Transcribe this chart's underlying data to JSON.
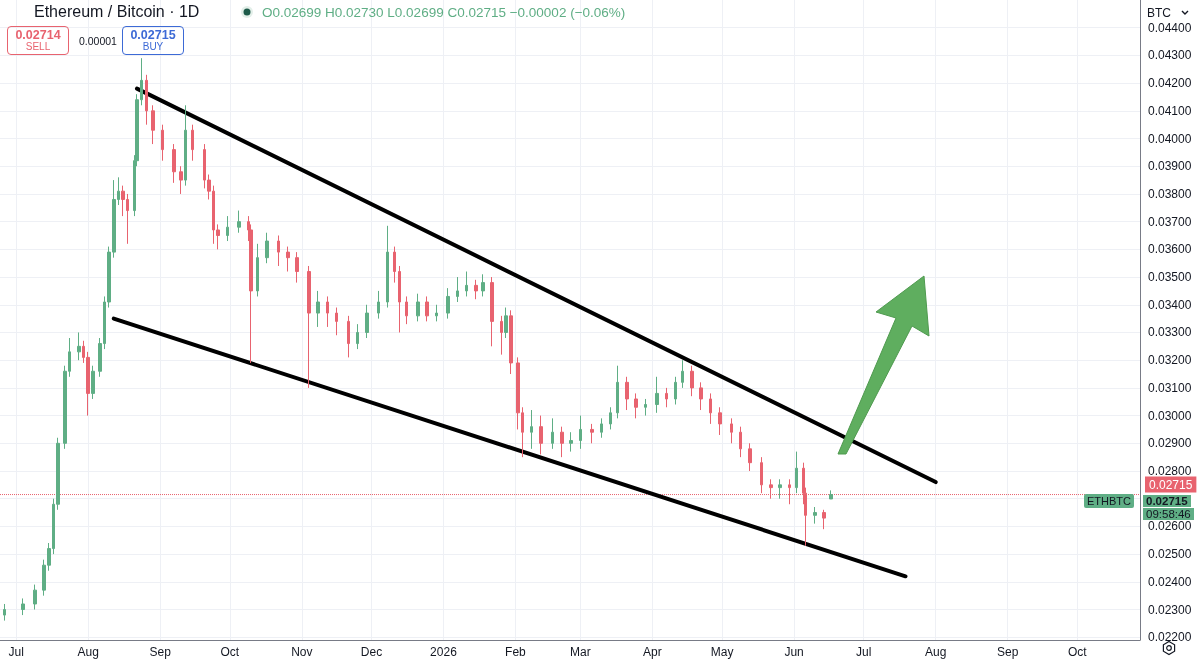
{
  "chart_data": {
    "type": "candlestick",
    "title": "Ethereum / Bitcoin · 1D",
    "annotations": [
      "O0.02699 H0.02730 L0.02699 C0.02715 −0.00002 (−0.06%)",
      "0.02714",
      "SELL",
      "0.00001",
      "0.02715",
      "BUY",
      "BTC",
      "ETHBTC",
      "0.02715",
      "09:58:46"
    ],
    "x": [
      "2025-06-26",
      "2025-07-04",
      "2025-07-09",
      "2025-07-13",
      "2025-07-15",
      "2025-07-17",
      "2025-07-19",
      "2025-07-22",
      "2025-07-24",
      "2025-07-28",
      "2025-07-30",
      "2025-08-01",
      "2025-08-03",
      "2025-08-06",
      "2025-08-08",
      "2025-08-10",
      "2025-08-12",
      "2025-08-14",
      "2025-08-16",
      "2025-08-18",
      "2025-08-21",
      "2025-08-22",
      "2025-08-24",
      "2025-08-26",
      "2025-08-29",
      "2025-09-02",
      "2025-09-07",
      "2025-09-10",
      "2025-09-12",
      "2025-09-15",
      "2025-09-20",
      "2025-09-22",
      "2025-09-24",
      "2025-09-26",
      "2025-09-30",
      "2025-10-05",
      "2025-10-09",
      "2025-10-10",
      "2025-10-13",
      "2025-10-17",
      "2025-10-22",
      "2025-10-26",
      "2025-10-30",
      "2025-11-04",
      "2025-11-08",
      "2025-11-12",
      "2025-11-16",
      "2025-11-21",
      "2025-11-25",
      "2025-11-29",
      "2025-12-04",
      "2025-12-08",
      "2025-12-11",
      "2025-12-13",
      "2025-12-16",
      "2025-12-21",
      "2025-12-25",
      "2025-12-29",
      "2026-01-03",
      "2026-01-07",
      "2026-01-11",
      "2026-01-15",
      "2026-01-18",
      "2026-01-22",
      "2026-01-26",
      "2026-01-28",
      "2026-01-30",
      "2026-02-02",
      "2026-02-04",
      "2026-02-08",
      "2026-02-12",
      "2026-02-17",
      "2026-02-21",
      "2026-02-25",
      "2026-03-01",
      "2026-03-06",
      "2026-03-10",
      "2026-03-14",
      "2026-03-17",
      "2026-03-21",
      "2026-03-25",
      "2026-03-29",
      "2026-04-03",
      "2026-04-07",
      "2026-04-11",
      "2026-04-14",
      "2026-04-18",
      "2026-04-22",
      "2026-04-26",
      "2026-04-30",
      "2026-05-05",
      "2026-05-09",
      "2026-05-13",
      "2026-05-18",
      "2026-05-22",
      "2026-05-26",
      "2026-05-30",
      "2026-06-02",
      "2026-06-05",
      "2026-06-06",
      "2026-06-10",
      "2026-06-14",
      "2026-06-17"
    ],
    "ohlc": [
      [
        0.0228,
        0.0232,
        0.0226,
        0.023
      ],
      [
        0.023,
        0.0234,
        0.0228,
        0.0232
      ],
      [
        0.0232,
        0.0239,
        0.023,
        0.0237
      ],
      [
        0.0237,
        0.0248,
        0.0235,
        0.0246
      ],
      [
        0.0246,
        0.0254,
        0.0244,
        0.0252
      ],
      [
        0.0252,
        0.027,
        0.025,
        0.0268
      ],
      [
        0.0268,
        0.0292,
        0.0266,
        0.029
      ],
      [
        0.029,
        0.0318,
        0.0288,
        0.0316
      ],
      [
        0.0316,
        0.0328,
        0.0314,
        0.0323
      ],
      [
        0.0323,
        0.033,
        0.032,
        0.0325
      ],
      [
        0.0325,
        0.0327,
        0.0319,
        0.0321
      ],
      [
        0.0321,
        0.0323,
        0.03,
        0.0308
      ],
      [
        0.0308,
        0.0318,
        0.0306,
        0.0316
      ],
      [
        0.0316,
        0.0328,
        0.0314,
        0.0326
      ],
      [
        0.0326,
        0.0343,
        0.0324,
        0.0341
      ],
      [
        0.0341,
        0.0361,
        0.0339,
        0.0359
      ],
      [
        0.0359,
        0.0385,
        0.0357,
        0.0378
      ],
      [
        0.0378,
        0.0386,
        0.0376,
        0.0381
      ],
      [
        0.0381,
        0.0383,
        0.0372,
        0.0378
      ],
      [
        0.0378,
        0.038,
        0.0362,
        0.0374
      ],
      [
        0.0374,
        0.0394,
        0.0372,
        0.0392
      ],
      [
        0.0392,
        0.0416,
        0.039,
        0.0414
      ],
      [
        0.0414,
        0.0429,
        0.0412,
        0.0421
      ],
      [
        0.0421,
        0.0423,
        0.0405,
        0.041
      ],
      [
        0.041,
        0.0412,
        0.0398,
        0.0403
      ],
      [
        0.0403,
        0.0405,
        0.0392,
        0.0396
      ],
      [
        0.0396,
        0.0398,
        0.0384,
        0.0388
      ],
      [
        0.0388,
        0.039,
        0.038,
        0.0385
      ],
      [
        0.0385,
        0.0412,
        0.0383,
        0.0403
      ],
      [
        0.0403,
        0.0405,
        0.0392,
        0.0396
      ],
      [
        0.0396,
        0.0398,
        0.0382,
        0.0385
      ],
      [
        0.0385,
        0.0387,
        0.0378,
        0.0381
      ],
      [
        0.0381,
        0.0383,
        0.0362,
        0.0367
      ],
      [
        0.0367,
        0.0369,
        0.036,
        0.0365
      ],
      [
        0.0365,
        0.0372,
        0.0363,
        0.0368
      ],
      [
        0.0368,
        0.0374,
        0.0366,
        0.037
      ],
      [
        0.037,
        0.0372,
        0.0363,
        0.0367
      ],
      [
        0.0367,
        0.0369,
        0.0319,
        0.0345
      ],
      [
        0.0345,
        0.0362,
        0.0343,
        0.0357
      ],
      [
        0.0357,
        0.0366,
        0.0355,
        0.0363
      ],
      [
        0.0363,
        0.0365,
        0.0354,
        0.0359
      ],
      [
        0.0359,
        0.0361,
        0.0352,
        0.0357
      ],
      [
        0.0357,
        0.0359,
        0.0348,
        0.0352
      ],
      [
        0.0352,
        0.0354,
        0.031,
        0.0337
      ],
      [
        0.0337,
        0.0345,
        0.0332,
        0.0341
      ],
      [
        0.0341,
        0.0343,
        0.0332,
        0.0337
      ],
      [
        0.0337,
        0.0339,
        0.0329,
        0.0334
      ],
      [
        0.0334,
        0.0336,
        0.0321,
        0.0326
      ],
      [
        0.0326,
        0.0333,
        0.0324,
        0.033
      ],
      [
        0.033,
        0.034,
        0.0328,
        0.0337
      ],
      [
        0.0337,
        0.0345,
        0.0335,
        0.0341
      ],
      [
        0.0341,
        0.03685,
        0.0339,
        0.0359
      ],
      [
        0.0359,
        0.0361,
        0.0348,
        0.0352
      ],
      [
        0.0352,
        0.0354,
        0.033,
        0.0341
      ],
      [
        0.0341,
        0.0343,
        0.0333,
        0.0336
      ],
      [
        0.0336,
        0.0344,
        0.0334,
        0.0341
      ],
      [
        0.0341,
        0.0343,
        0.0334,
        0.0336
      ],
      [
        0.0336,
        0.034,
        0.0334,
        0.0337
      ],
      [
        0.0337,
        0.0346,
        0.0335,
        0.0343
      ],
      [
        0.0343,
        0.035,
        0.0341,
        0.0345
      ],
      [
        0.0345,
        0.0352,
        0.0343,
        0.0347
      ],
      [
        0.0347,
        0.0349,
        0.0342,
        0.0345
      ],
      [
        0.0345,
        0.0351,
        0.0343,
        0.0348
      ],
      [
        0.0348,
        0.035,
        0.0325,
        0.0334
      ],
      [
        0.0334,
        0.0336,
        0.0322,
        0.033
      ],
      [
        0.033,
        0.0339,
        0.0328,
        0.0336
      ],
      [
        0.0336,
        0.0338,
        0.0315,
        0.0319
      ],
      [
        0.0319,
        0.0321,
        0.0295,
        0.0301
      ],
      [
        0.0301,
        0.0303,
        0.0285,
        0.0294
      ],
      [
        0.0294,
        0.0302,
        0.0288,
        0.0296
      ],
      [
        0.0296,
        0.03,
        0.0286,
        0.029
      ],
      [
        0.029,
        0.0299,
        0.0288,
        0.0294
      ],
      [
        0.0294,
        0.0296,
        0.0285,
        0.029
      ],
      [
        0.029,
        0.0294,
        0.0287,
        0.0291
      ],
      [
        0.0291,
        0.03,
        0.0288,
        0.0295
      ],
      [
        0.0295,
        0.0297,
        0.029,
        0.0294
      ],
      [
        0.0294,
        0.0299,
        0.0292,
        0.0297
      ],
      [
        0.0297,
        0.0303,
        0.0295,
        0.0301
      ],
      [
        0.0301,
        0.0318,
        0.0299,
        0.0312
      ],
      [
        0.0312,
        0.0314,
        0.0302,
        0.0306
      ],
      [
        0.0306,
        0.0308,
        0.0299,
        0.0303
      ],
      [
        0.0303,
        0.0306,
        0.03,
        0.0304
      ],
      [
        0.0304,
        0.0314,
        0.0301,
        0.0308
      ],
      [
        0.0308,
        0.031,
        0.0303,
        0.0306
      ],
      [
        0.0306,
        0.0314,
        0.0304,
        0.0312
      ],
      [
        0.0312,
        0.032,
        0.031,
        0.0316
      ],
      [
        0.0316,
        0.0318,
        0.0307,
        0.031
      ],
      [
        0.031,
        0.0312,
        0.0302,
        0.0306
      ],
      [
        0.0306,
        0.0308,
        0.0297,
        0.0301
      ],
      [
        0.0301,
        0.0303,
        0.0293,
        0.0297
      ],
      [
        0.0297,
        0.0299,
        0.029,
        0.0294
      ],
      [
        0.0294,
        0.0296,
        0.0285,
        0.0288
      ],
      [
        0.0288,
        0.029,
        0.028,
        0.0283
      ],
      [
        0.0283,
        0.0285,
        0.0272,
        0.0275
      ],
      [
        0.0275,
        0.0277,
        0.027,
        0.0274
      ],
      [
        0.0274,
        0.0277,
        0.027,
        0.0275
      ],
      [
        0.0275,
        0.0277,
        0.0268,
        0.0274
      ],
      [
        0.0274,
        0.0287,
        0.0272,
        0.0281
      ],
      [
        0.0281,
        0.0283,
        0.0268,
        0.0272
      ],
      [
        0.0272,
        0.0274,
        0.0253,
        0.0264
      ],
      [
        0.0264,
        0.0267,
        0.0261,
        0.0265
      ],
      [
        0.0265,
        0.0266,
        0.0259,
        0.0263
      ],
      [
        0.02699,
        0.0273,
        0.02699,
        0.02715
      ]
    ],
    "colors": [
      "#5fae85",
      "#5fae85",
      "#5fae85",
      "#5fae85",
      "#5fae85",
      "#5fae85",
      "#5fae85",
      "#5fae85",
      "#5fae85",
      "#5fae85",
      "#e8636f",
      "#e8636f",
      "#5fae85",
      "#5fae85",
      "#5fae85",
      "#5fae85",
      "#5fae85",
      "#5fae85",
      "#e8636f",
      "#e8636f",
      "#5fae85",
      "#5fae85",
      "#5fae85",
      "#e8636f",
      "#e8636f",
      "#e8636f",
      "#e8636f",
      "#e8636f",
      "#5fae85",
      "#e8636f",
      "#e8636f",
      "#e8636f",
      "#e8636f",
      "#e8636f",
      "#5fae85",
      "#5fae85",
      "#e8636f",
      "#e8636f",
      "#5fae85",
      "#5fae85",
      "#e8636f",
      "#e8636f",
      "#e8636f",
      "#e8636f",
      "#5fae85",
      "#e8636f",
      "#e8636f",
      "#e8636f",
      "#5fae85",
      "#5fae85",
      "#5fae85",
      "#5fae85",
      "#e8636f",
      "#e8636f",
      "#e8636f",
      "#5fae85",
      "#e8636f",
      "#5fae85",
      "#5fae85",
      "#5fae85",
      "#5fae85",
      "#e8636f",
      "#5fae85",
      "#e8636f",
      "#e8636f",
      "#5fae85",
      "#e8636f",
      "#e8636f",
      "#e8636f",
      "#5fae85",
      "#e8636f",
      "#5fae85",
      "#e8636f",
      "#5fae85",
      "#5fae85",
      "#e8636f",
      "#5fae85",
      "#5fae85",
      "#5fae85",
      "#e8636f",
      "#e8636f",
      "#5fae85",
      "#5fae85",
      "#e8636f",
      "#5fae85",
      "#5fae85",
      "#e8636f",
      "#e8636f",
      "#e8636f",
      "#e8636f",
      "#e8636f",
      "#e8636f",
      "#e8636f",
      "#e8636f",
      "#e8636f",
      "#5fae85",
      "#e8636f",
      "#5fae85",
      "#e8636f",
      "#e8636f",
      "#5fae85",
      "#e8636f",
      "#5fae85"
    ],
    "series": [
      {
        "type": "line",
        "color": "#000000",
        "x": [
          "2025-08-22",
          "2026-08-01"
        ],
        "values": [
          0.0418,
          0.0276
        ]
      },
      {
        "type": "line",
        "color": "#000000",
        "x": [
          "2025-08-12",
          "2026-07-19"
        ],
        "values": [
          0.0335,
          0.0242
        ]
      }
    ],
    "marker": "none",
    "ref_lines": [
      {
        "axis": "y",
        "value": 0.02715,
        "label": "0.02715",
        "color": "#e8636f",
        "line_style": "dotted"
      }
    ],
    "xlim": [
      "2025-06-24",
      "2026-10-28"
    ],
    "xticks": [
      {
        "value": "2025-07-01",
        "label": "Jul"
      },
      {
        "value": "2025-08-01",
        "label": "Aug"
      },
      {
        "value": "2025-09-01",
        "label": "Sep"
      },
      {
        "value": "2025-10-01",
        "label": "Oct"
      },
      {
        "value": "2025-11-01",
        "label": "Nov"
      },
      {
        "value": "2025-12-01",
        "label": "Dec"
      },
      {
        "value": "2026-01-01",
        "label": "2026"
      },
      {
        "value": "2026-02-01",
        "label": "Feb"
      },
      {
        "value": "2026-03-01",
        "label": "Mar"
      },
      {
        "value": "2026-04-01",
        "label": "Apr"
      },
      {
        "value": "2026-05-01",
        "label": "May"
      },
      {
        "value": "2026-06-01",
        "label": "Jun"
      },
      {
        "value": "2026-07-01",
        "label": "Jul"
      },
      {
        "value": "2026-08-01",
        "label": "Aug"
      },
      {
        "value": "2026-09-01",
        "label": "Sep"
      },
      {
        "value": "2026-10-01",
        "label": "Oct"
      }
    ],
    "ylim": [
      0.0219,
      0.045
    ],
    "yticks": [
      {
        "value": 0.022,
        "label": "0.02200"
      },
      {
        "value": 0.023,
        "label": "0.02300"
      },
      {
        "value": 0.024,
        "label": "0.02400"
      },
      {
        "value": 0.025,
        "label": "0.02500"
      },
      {
        "value": 0.026,
        "label": "0.02600"
      },
      {
        "value": 0.027,
        "label": null
      },
      {
        "value": 0.028,
        "label": "0.02800"
      },
      {
        "value": 0.029,
        "label": "0.02900"
      },
      {
        "value": 0.03,
        "label": "0.03000"
      },
      {
        "value": 0.031,
        "label": "0.03100"
      },
      {
        "value": 0.032,
        "label": "0.03200"
      },
      {
        "value": 0.033,
        "label": "0.03300"
      },
      {
        "value": 0.034,
        "label": "0.03400"
      },
      {
        "value": 0.035,
        "label": "0.03500"
      },
      {
        "value": 0.036,
        "label": "0.03600"
      },
      {
        "value": 0.037,
        "label": "0.03700"
      },
      {
        "value": 0.038,
        "label": "0.03800"
      },
      {
        "value": 0.039,
        "label": "0.03900"
      },
      {
        "value": 0.04,
        "label": "0.04000"
      },
      {
        "value": 0.041,
        "label": "0.04100"
      },
      {
        "value": 0.042,
        "label": "0.04200"
      },
      {
        "value": 0.043,
        "label": "0.04300"
      },
      {
        "value": 0.044,
        "label": "0.04400"
      }
    ],
    "grid": true
  }
}
